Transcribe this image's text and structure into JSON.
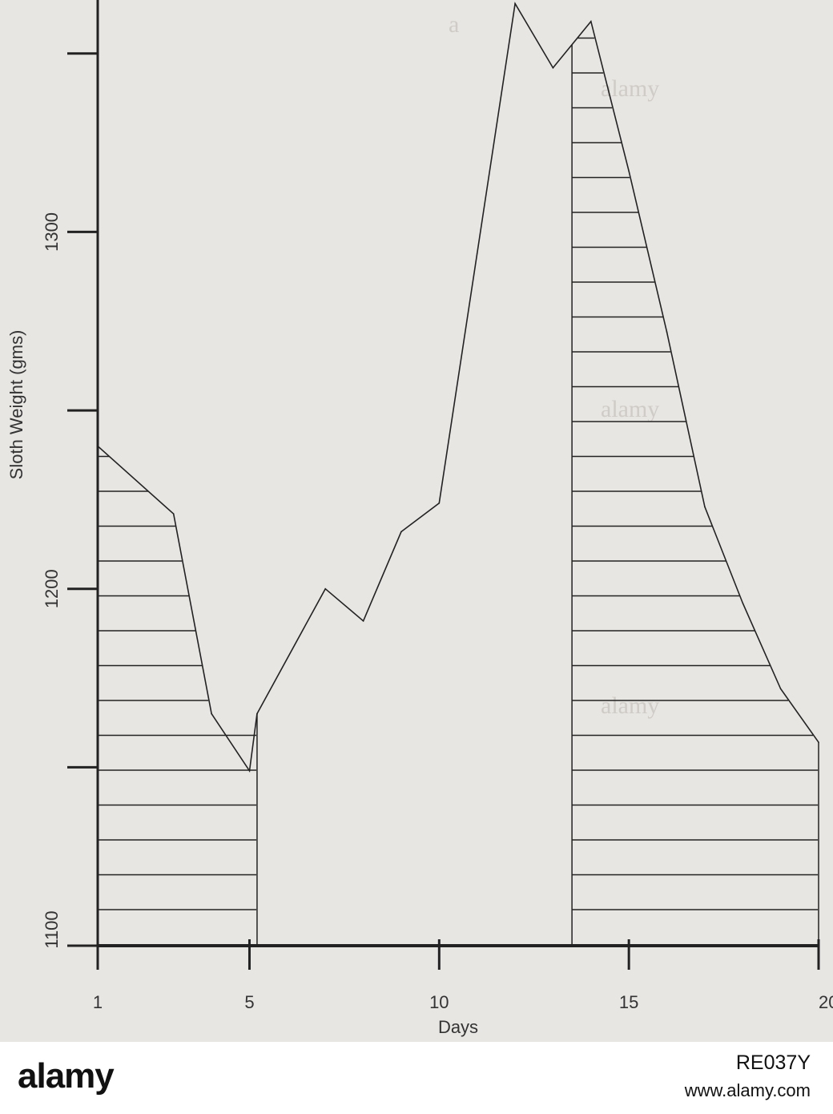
{
  "chart_data": {
    "type": "line",
    "title": "",
    "xlabel": "Days",
    "ylabel": "Sloth Weight (gms)",
    "xlim": [
      1,
      20
    ],
    "ylim": [
      1100,
      1365
    ],
    "x_ticks": [
      1,
      5,
      10,
      15,
      20
    ],
    "y_ticks": [
      1100,
      1200,
      1300
    ],
    "y_minor_ticks": [
      1150,
      1250,
      1350
    ],
    "series": [
      {
        "x": [
          1,
          3,
          4,
          5,
          5.2,
          7,
          8,
          9,
          10,
          11,
          12,
          13,
          14,
          15,
          16,
          17,
          18,
          19,
          20
        ],
        "y": [
          1240,
          1221,
          1165,
          1149,
          1165,
          1200,
          1191,
          1216,
          1224,
          1294,
          1364,
          1346,
          1359,
          1317,
          1272,
          1223,
          1196,
          1172,
          1157
        ]
      }
    ],
    "shaded_regions": [
      {
        "x_start": 1,
        "x_end": 5.2
      },
      {
        "x_start": 13.5,
        "x_end": 20
      }
    ],
    "grid": false,
    "legend": "none"
  },
  "footer": {
    "logo": "alamy",
    "image_code": "RE037Y",
    "url": "www.alamy.com"
  }
}
